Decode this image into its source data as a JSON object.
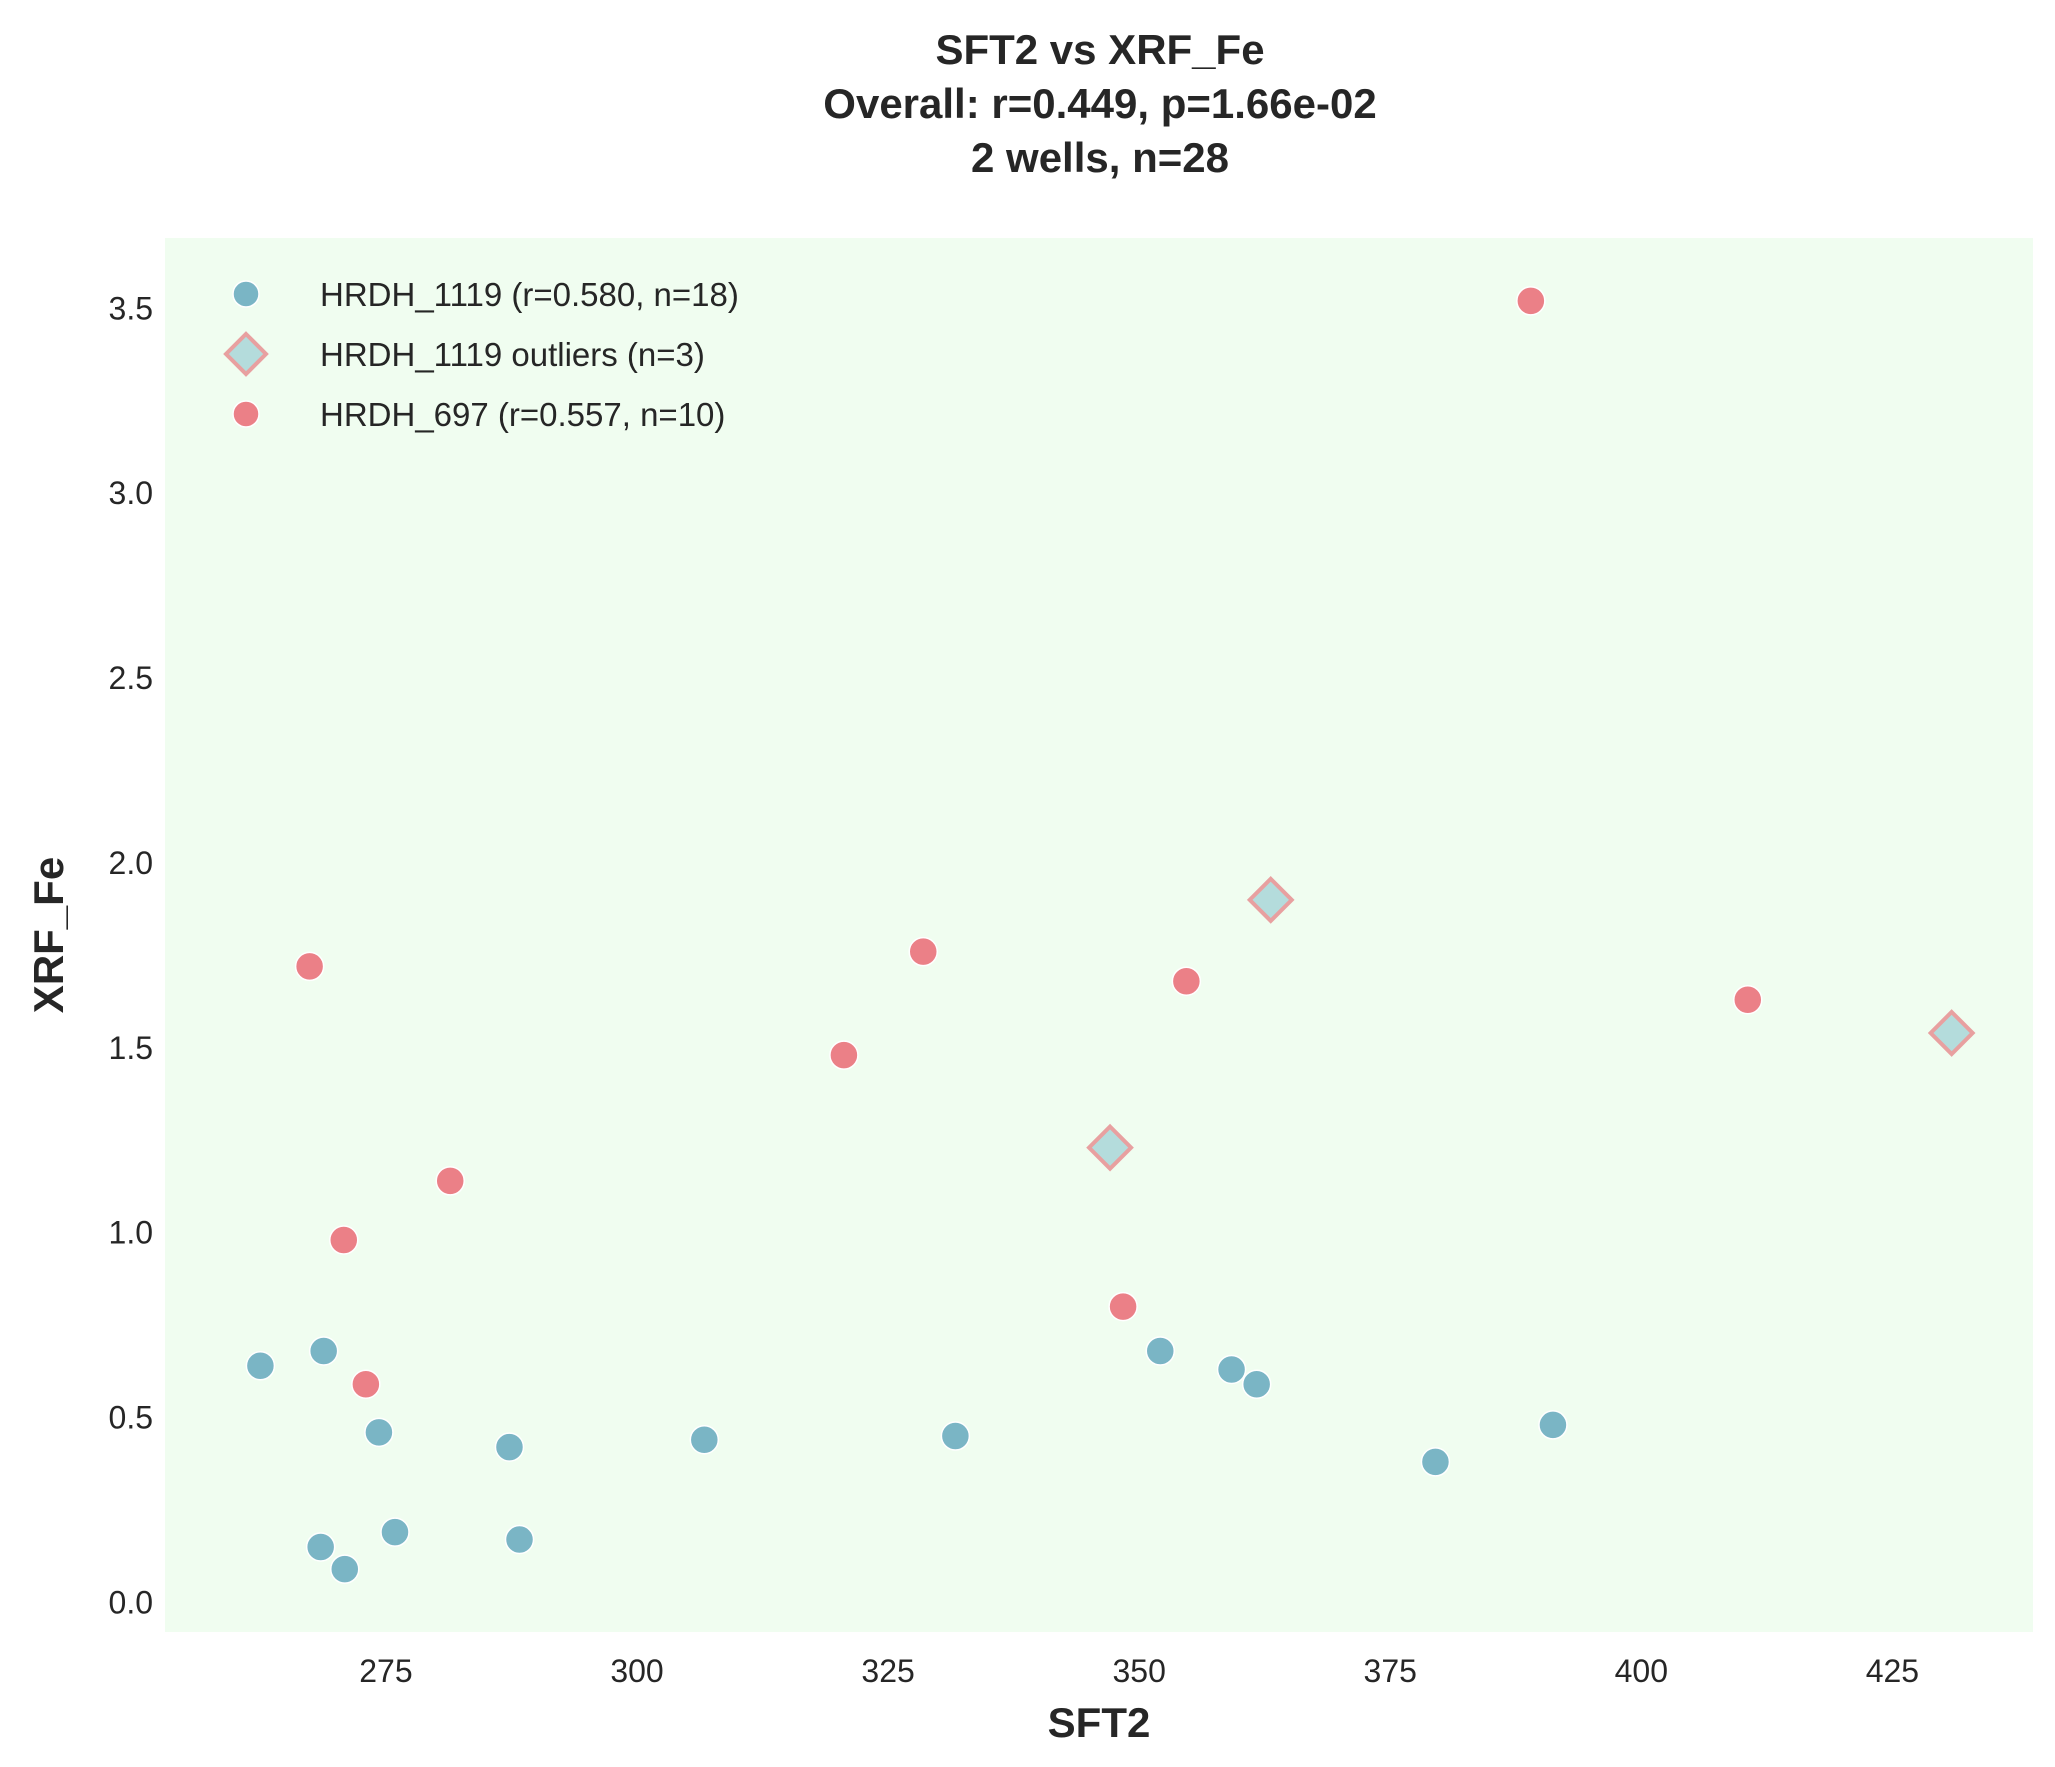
{
  "chart_data": {
    "type": "scatter",
    "title_lines": [
      "SFT2 vs XRF_Fe",
      "Overall: r=0.449, p=1.66e-02",
      "2 wells, n=28"
    ],
    "xlabel": "SFT2",
    "ylabel": "XRF_Fe",
    "xlim": [
      253,
      439
    ],
    "ylim": [
      -0.08,
      3.69
    ],
    "xticks": [
      275,
      300,
      325,
      350,
      375,
      400,
      425
    ],
    "yticks": [
      0.0,
      0.5,
      1.0,
      1.5,
      2.0,
      2.5,
      3.0,
      3.5
    ],
    "xtick_labels": [
      "275",
      "300",
      "325",
      "350",
      "375",
      "400",
      "425"
    ],
    "ytick_labels": [
      "0.0",
      "0.5",
      "1.0",
      "1.5",
      "2.0",
      "2.5",
      "3.0",
      "3.5"
    ],
    "grid": false,
    "background": "#f0fdf0",
    "legend_position": "top-left",
    "series": [
      {
        "name": "HRDH_1119 (r=0.580, n=18)",
        "marker": "circle",
        "color": "#7ab5c5",
        "points": [
          [
            262.5,
            0.64
          ],
          [
            268.8,
            0.68
          ],
          [
            268.5,
            0.15
          ],
          [
            270.9,
            0.09
          ],
          [
            274.3,
            0.46
          ],
          [
            275.9,
            0.19
          ],
          [
            287.3,
            0.42
          ],
          [
            288.3,
            0.17
          ],
          [
            306.7,
            0.44
          ],
          [
            331.7,
            0.45
          ],
          [
            352.1,
            0.68
          ],
          [
            359.2,
            0.63
          ],
          [
            361.7,
            0.59
          ],
          [
            379.5,
            0.38
          ],
          [
            391.2,
            0.48
          ]
        ]
      },
      {
        "name": "HRDH_1119 outliers (n=3)",
        "marker": "diamond",
        "color": "#b4dcdc",
        "edge_color": "#e8a0a0",
        "points": [
          [
            363.1,
            1.9
          ],
          [
            347.1,
            1.23
          ],
          [
            430.9,
            1.54
          ]
        ]
      },
      {
        "name": "HRDH_697 (r=0.557, n=10)",
        "marker": "circle",
        "color": "#eb8087",
        "points": [
          [
            267.4,
            1.72
          ],
          [
            270.8,
            0.98
          ],
          [
            273.0,
            0.59
          ],
          [
            281.4,
            1.14
          ],
          [
            320.6,
            1.48
          ],
          [
            328.5,
            1.76
          ],
          [
            348.4,
            0.8
          ],
          [
            354.7,
            1.68
          ],
          [
            389.0,
            3.52
          ],
          [
            410.6,
            1.63
          ]
        ]
      }
    ]
  }
}
